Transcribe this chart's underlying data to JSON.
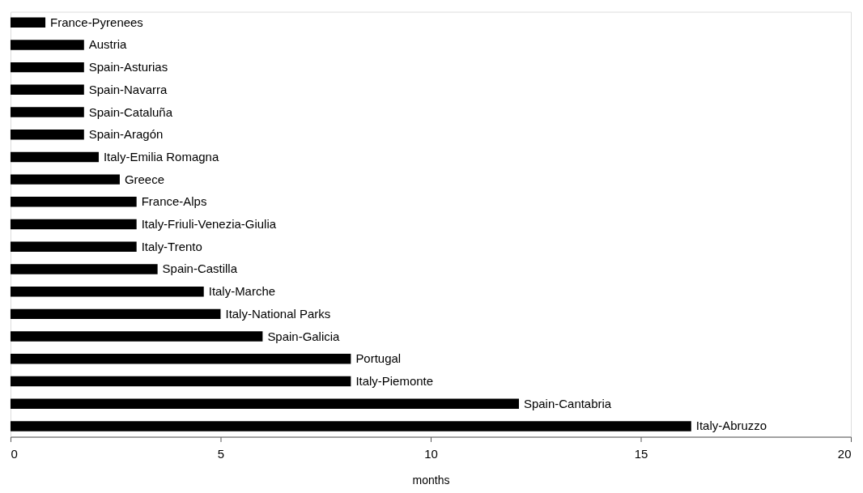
{
  "chart_data": {
    "type": "bar",
    "orientation": "horizontal",
    "xlabel": "months",
    "categories": [
      "France-Pyrenees",
      "Austria",
      "Spain-Asturias",
      "Spain-Navarra",
      "Spain-Cataluña",
      "Spain-Aragón",
      "Italy-Emilia Romagna",
      "Greece",
      "France-Alps",
      "Italy-Friuli-Venezia-Giulia",
      "Italy-Trento",
      "Spain-Castilla",
      "Italy-Marche",
      "Italy-National Parks",
      "Spain-Galicia",
      "Portugal",
      "Italy-Piemonte",
      "Spain-Cantabria",
      "Italy-Abruzzo"
    ],
    "values": [
      0.83,
      1.75,
      1.75,
      1.75,
      1.75,
      1.75,
      2.1,
      2.6,
      3.0,
      3.0,
      3.0,
      3.5,
      4.6,
      5.0,
      6.0,
      8.1,
      8.1,
      12.1,
      16.2
    ],
    "color": "#000000",
    "xlim": [
      0,
      20
    ],
    "xticks": [
      0,
      5,
      10,
      15,
      20
    ]
  }
}
